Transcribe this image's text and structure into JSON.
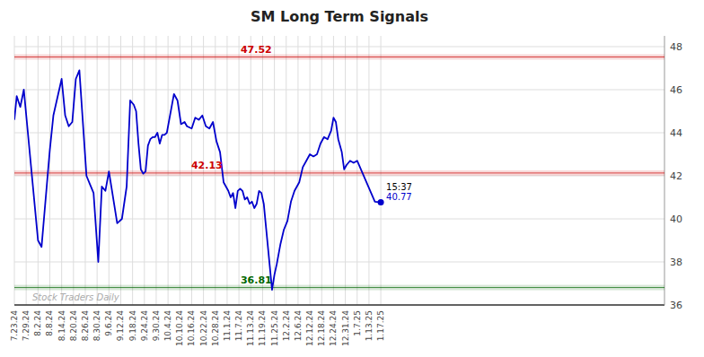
{
  "chart_data": {
    "type": "line",
    "title": "SM Long Term Signals",
    "watermark": "Stock Traders Daily",
    "annotation": "15:37",
    "color": "#0000cc",
    "grid": true,
    "xlim": [
      0,
      55
    ],
    "ylim": [
      36,
      48.5
    ],
    "yticks": [
      36,
      38,
      40,
      42,
      44,
      46,
      48
    ],
    "xticks": [
      {
        "value": 0,
        "label": "7.23.24"
      },
      {
        "value": 1,
        "label": "7.29.24"
      },
      {
        "value": 2,
        "label": "8.2.24"
      },
      {
        "value": 3,
        "label": "8.8.24"
      },
      {
        "value": 4,
        "label": "8.14.24"
      },
      {
        "value": 5,
        "label": "8.20.24"
      },
      {
        "value": 6,
        "label": "8.26.24"
      },
      {
        "value": 7,
        "label": "8.30.24"
      },
      {
        "value": 8,
        "label": "9.6.24"
      },
      {
        "value": 9,
        "label": "9.12.24"
      },
      {
        "value": 10,
        "label": "9.18.24"
      },
      {
        "value": 11,
        "label": "9.24.24"
      },
      {
        "value": 12,
        "label": "9.30.24"
      },
      {
        "value": 13,
        "label": "10.4.24"
      },
      {
        "value": 14,
        "label": "10.10.24"
      },
      {
        "value": 15,
        "label": "10.16.24"
      },
      {
        "value": 16,
        "label": "10.22.24"
      },
      {
        "value": 17,
        "label": "10.28.24"
      },
      {
        "value": 18,
        "label": "11.1.24"
      },
      {
        "value": 19,
        "label": "11.7.24"
      },
      {
        "value": 20,
        "label": "11.13.24"
      },
      {
        "value": 21,
        "label": "11.19.24"
      },
      {
        "value": 22,
        "label": "11.25.24"
      },
      {
        "value": 23,
        "label": "12.2.24"
      },
      {
        "value": 24,
        "label": "12.6.24"
      },
      {
        "value": 25,
        "label": "12.12.24"
      },
      {
        "value": 26,
        "label": "12.18.24"
      },
      {
        "value": 27,
        "label": "12.24.24"
      },
      {
        "value": 28,
        "label": "12.31.24"
      },
      {
        "value": 29,
        "label": "1.7.25"
      },
      {
        "value": 30,
        "label": "1.13.25"
      },
      {
        "value": 31,
        "label": "1.17.25"
      }
    ],
    "hlines": [
      {
        "value": 47.52,
        "color": "#cc0000"
      },
      {
        "value": 42.13,
        "color": "#cc0000"
      },
      {
        "value": 36.81,
        "color": "#006600"
      }
    ],
    "x": [
      0,
      0.2,
      0.5,
      0.8,
      2,
      2.3,
      3,
      3.3,
      4,
      4.3,
      4.6,
      4.9,
      5.2,
      5.5,
      6.1,
      6.4,
      6.7,
      7.1,
      7.4,
      7.7,
      8.0,
      8.7,
      9.1,
      9.5,
      9.8,
      10.1,
      10.3,
      10.5,
      10.7,
      10.9,
      11.1,
      11.3,
      11.5,
      11.7,
      11.9,
      12.1,
      12.3,
      12.5,
      12.7,
      12.9,
      13.5,
      13.8,
      14.1,
      14.4,
      14.6,
      15.0,
      15.3,
      15.6,
      15.9,
      16.2,
      16.5,
      16.8,
      17.1,
      17.4,
      17.7,
      17.9,
      18.1,
      18.3,
      18.5,
      18.7,
      18.9,
      19.1,
      19.3,
      19.5,
      19.7,
      19.9,
      20.1,
      20.3,
      20.5,
      20.7,
      20.9,
      21.1,
      21.8,
      22.0,
      22.2,
      22.5,
      22.8,
      23.1,
      23.4,
      23.7,
      24.1,
      24.4,
      24.7,
      25.0,
      25.3,
      25.6,
      25.9,
      26.2,
      26.5,
      26.8,
      27.0,
      27.2,
      27.4,
      27.7,
      27.9,
      28.1,
      28.4,
      28.7,
      29.0,
      30.5,
      31.0
    ],
    "values": [
      44.6,
      45.7,
      45.2,
      46.0,
      39.0,
      38.7,
      43.2,
      44.8,
      46.5,
      44.8,
      44.3,
      44.5,
      46.5,
      46.9,
      42.0,
      41.6,
      41.2,
      38.0,
      41.5,
      41.3,
      42.2,
      39.8,
      40.0,
      41.5,
      45.5,
      45.3,
      45.0,
      43.5,
      42.3,
      42.1,
      42.2,
      43.4,
      43.7,
      43.8,
      43.8,
      44.0,
      43.5,
      43.9,
      43.9,
      44.0,
      45.8,
      45.5,
      44.4,
      44.5,
      44.3,
      44.2,
      44.7,
      44.6,
      44.8,
      44.3,
      44.2,
      44.5,
      43.6,
      43.1,
      41.7,
      41.5,
      41.3,
      41.0,
      41.2,
      40.5,
      41.3,
      41.4,
      41.3,
      40.9,
      41.0,
      40.7,
      40.8,
      40.5,
      40.7,
      41.3,
      41.2,
      40.7,
      36.7,
      37.4,
      37.9,
      38.8,
      39.5,
      39.9,
      40.8,
      41.3,
      41.7,
      42.4,
      42.7,
      43.0,
      42.9,
      43.0,
      43.5,
      43.8,
      43.7,
      44.1,
      44.7,
      44.5,
      43.7,
      43.1,
      42.3,
      42.5,
      42.7,
      42.6,
      42.7,
      40.8,
      40.77
    ]
  }
}
